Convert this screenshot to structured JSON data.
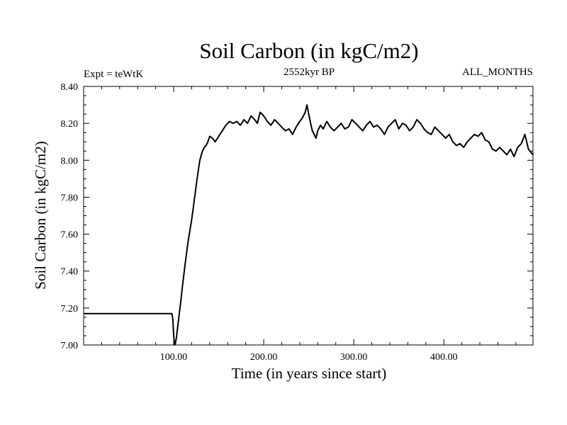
{
  "chart_data": {
    "type": "line",
    "title": "Soil Carbon (in kgC/m2)",
    "subtitle_left": "Expt = teWtK",
    "subtitle_center": "2552kyr BP",
    "subtitle_right": "ALL_MONTHS",
    "xlabel": "Time (in years since start)",
    "ylabel": "Soil Carbon (in kgC/m2)",
    "xlim": [
      0,
      499
    ],
    "ylim": [
      7.0,
      8.4
    ],
    "x_ticks": [
      100,
      200,
      300,
      400
    ],
    "x_tick_labels": [
      "100.00",
      "200.00",
      "300.00",
      "400.00"
    ],
    "y_ticks": [
      7.0,
      7.2,
      7.4,
      7.6,
      7.8,
      8.0,
      8.2,
      8.4
    ],
    "y_tick_labels": [
      "7.00",
      "7.20",
      "7.40",
      "7.60",
      "7.80",
      "8.00",
      "8.20",
      "8.40"
    ],
    "grid": false,
    "series": [
      {
        "name": "Soil Carbon",
        "color": "#000000",
        "x": [
          0,
          98,
          99,
          100,
          101,
          102,
          103,
          105,
          108,
          110,
          113,
          116,
          120,
          123,
          126,
          129,
          132,
          134,
          136,
          138,
          140,
          143,
          146,
          150,
          154,
          158,
          162,
          166,
          170,
          174,
          178,
          182,
          186,
          190,
          193,
          196,
          200,
          204,
          208,
          212,
          216,
          220,
          224,
          228,
          232,
          236,
          240,
          243,
          246,
          248,
          250,
          252,
          254,
          256,
          258,
          260,
          263,
          266,
          270,
          274,
          278,
          282,
          286,
          290,
          294,
          298,
          302,
          306,
          310,
          314,
          318,
          322,
          326,
          330,
          334,
          338,
          342,
          346,
          350,
          354,
          358,
          362,
          366,
          370,
          374,
          378,
          382,
          386,
          390,
          394,
          398,
          402,
          406,
          410,
          414,
          418,
          422,
          426,
          430,
          434,
          438,
          442,
          446,
          450,
          454,
          458,
          462,
          466,
          470,
          474,
          478,
          482,
          486,
          490,
          494,
          499
        ],
        "y": [
          7.17,
          7.17,
          7.14,
          7.05,
          7.0,
          7.01,
          7.04,
          7.12,
          7.24,
          7.33,
          7.45,
          7.56,
          7.68,
          7.79,
          7.9,
          8.0,
          8.05,
          8.07,
          8.08,
          8.1,
          8.13,
          8.12,
          8.1,
          8.13,
          8.16,
          8.19,
          8.21,
          8.2,
          8.21,
          8.19,
          8.22,
          8.2,
          8.24,
          8.22,
          8.2,
          8.26,
          8.24,
          8.21,
          8.19,
          8.22,
          8.2,
          8.18,
          8.16,
          8.17,
          8.14,
          8.18,
          8.21,
          8.23,
          8.26,
          8.3,
          8.25,
          8.2,
          8.16,
          8.14,
          8.12,
          8.16,
          8.19,
          8.17,
          8.21,
          8.18,
          8.16,
          8.18,
          8.2,
          8.17,
          8.18,
          8.22,
          8.2,
          8.18,
          8.16,
          8.19,
          8.21,
          8.18,
          8.19,
          8.17,
          8.14,
          8.18,
          8.2,
          8.22,
          8.17,
          8.2,
          8.19,
          8.16,
          8.18,
          8.22,
          8.2,
          8.17,
          8.15,
          8.14,
          8.18,
          8.16,
          8.14,
          8.12,
          8.14,
          8.1,
          8.08,
          8.09,
          8.07,
          8.1,
          8.12,
          8.14,
          8.13,
          8.15,
          8.11,
          8.1,
          8.06,
          8.05,
          8.07,
          8.05,
          8.03,
          8.06,
          8.02,
          8.07,
          8.09,
          8.14,
          8.06,
          8.03
        ]
      }
    ]
  }
}
